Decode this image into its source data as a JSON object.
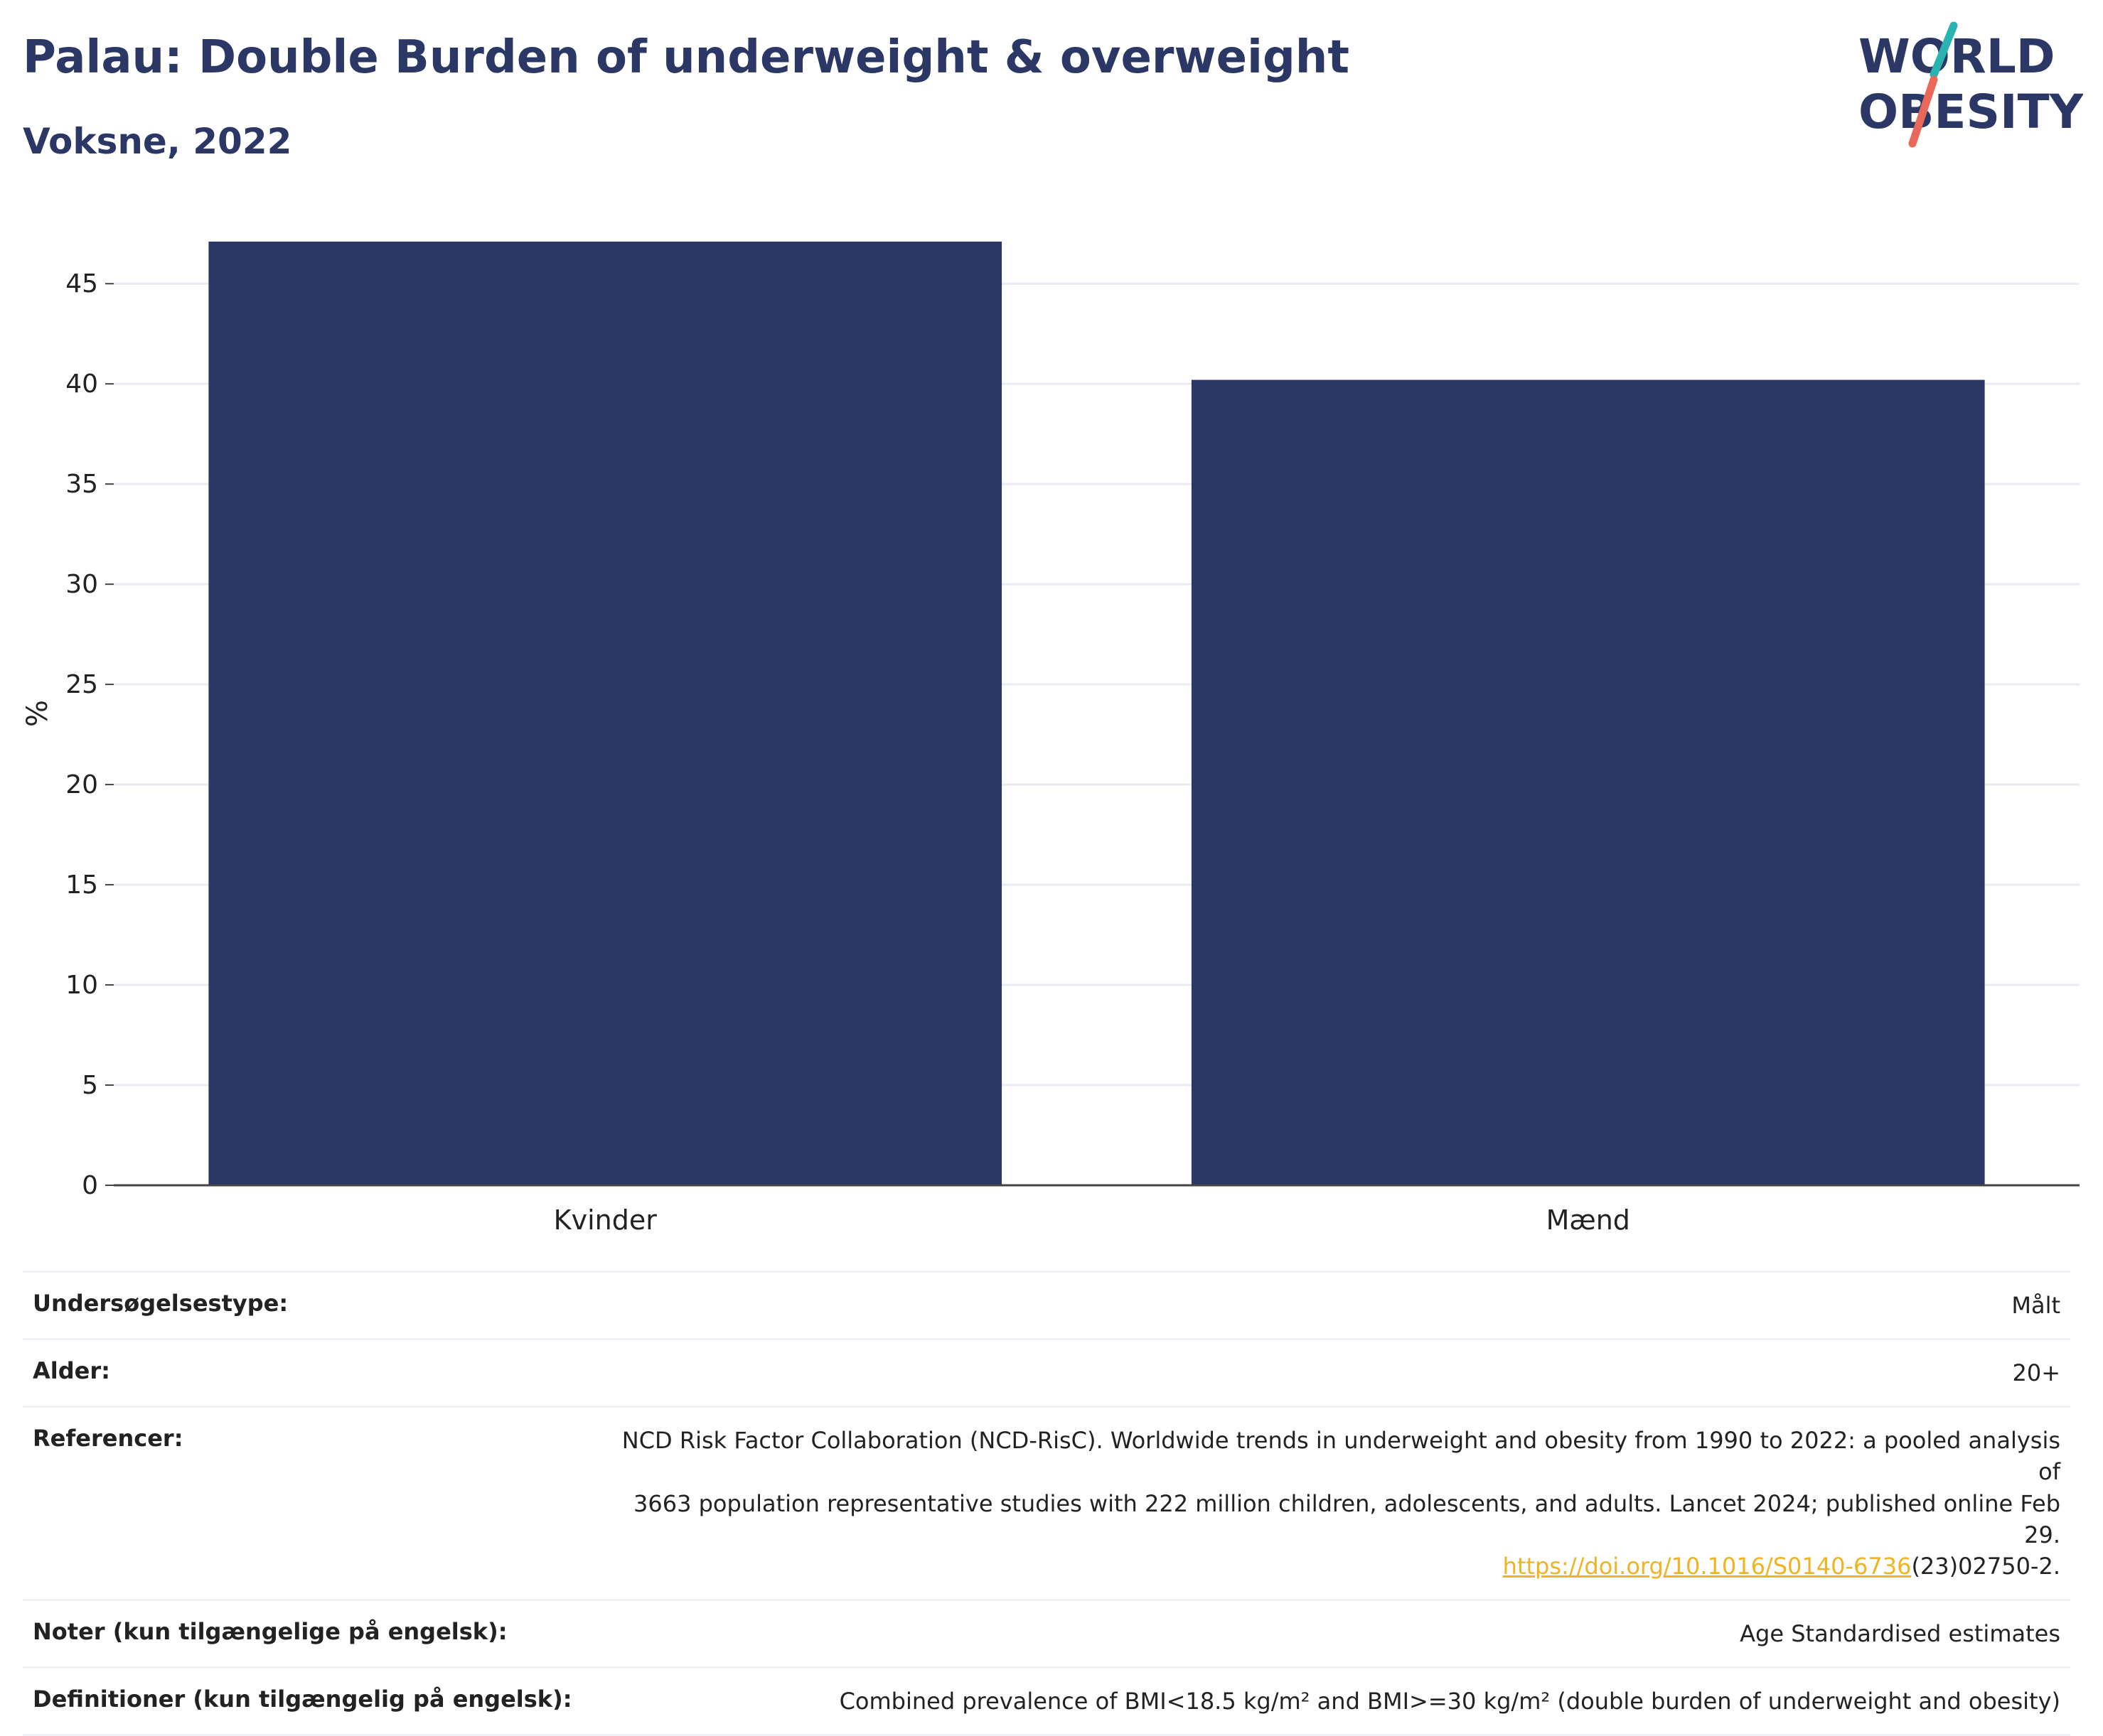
{
  "title": "Palau: Double Burden of underweight & overweight",
  "subtitle": "Voksne, 2022",
  "logo": {
    "line1": "WORLD",
    "line2": "OBESITY",
    "slash_color_top": "#2ab3b1",
    "slash_color_bottom": "#e8695a"
  },
  "colors": {
    "bar": "#2b3764",
    "title": "#2b3764",
    "grid": "#e9ebf2",
    "axis": "#444444",
    "link": "#f0b323"
  },
  "chart_data": {
    "type": "bar",
    "categories": [
      "Kvinder",
      "Mænd"
    ],
    "values": [
      47.1,
      40.2
    ],
    "title": "Palau: Double Burden of underweight & overweight",
    "subtitle": "Voksne, 2022",
    "xlabel": "",
    "ylabel": "%",
    "ylim": [
      0,
      47.1
    ],
    "yticks": [
      0,
      5,
      10,
      15,
      20,
      25,
      30,
      35,
      40,
      45
    ],
    "grid": true,
    "legend": "none"
  },
  "meta": {
    "survey_type": {
      "label": "Undersøgelsestype:",
      "value": "Målt"
    },
    "age": {
      "label": "Alder:",
      "value": "20+"
    },
    "references": {
      "label": "Referencer:",
      "line1": "NCD Risk Factor Collaboration (NCD-RisC). Worldwide trends in underweight and obesity from 1990 to 2022: a pooled analysis of",
      "line2": "3663 population representative studies with 222 million children, adolescents, and adults. Lancet 2024; published online Feb 29.",
      "doi_link": "https://doi.org/10.1016/S0140-6736",
      "doi_suffix": "(23)02750-2."
    },
    "notes": {
      "label": "Noter (kun tilgængelige på engelsk):",
      "value": "Age Standardised estimates"
    },
    "definitions": {
      "label": "Definitioner (kun tilgængelig på engelsk):",
      "value": "Combined prevalence of BMI<18.5 kg/m² and BMI>=30 kg/m² (double burden of underweight and obesity)"
    }
  }
}
